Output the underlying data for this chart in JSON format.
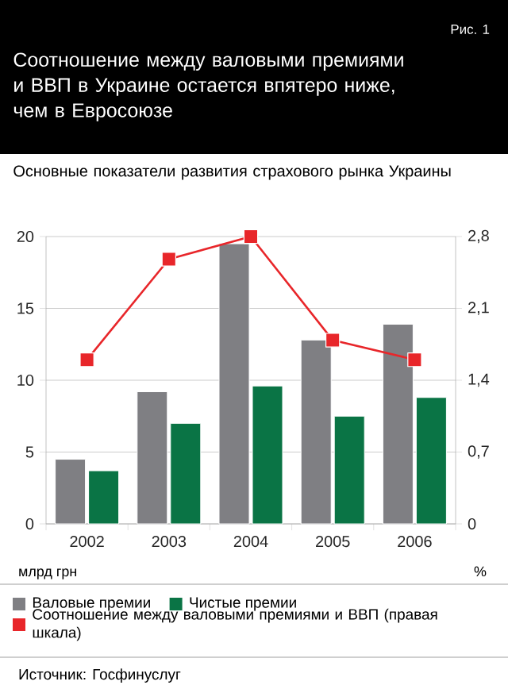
{
  "chart_data": {
    "type": "bar",
    "title": "Соотношение между валовыми премиями и ВВП в Украине остается впятеро ниже, чем в Евросоюзе",
    "subtitle": "Основные показатели развития страхового рынка Украины",
    "y2label": "%",
    "categories": [
      "2002",
      "2003",
      "2004",
      "2005",
      "2006"
    ],
    "series": [
      {
        "name": "Валовые премии",
        "color": "#7f7f83",
        "values": [
          4.5,
          9.2,
          19.5,
          12.8,
          13.9
        ]
      },
      {
        "name": "Чистые премии",
        "color": "#0a7445",
        "values": [
          3.7,
          7.0,
          9.6,
          7.5,
          8.8
        ]
      },
      {
        "name": "Соотношение между валовыми премиями и ВВП (правая шкала)",
        "color": "#e8262a",
        "type": "line",
        "axis": "y2",
        "marker": "square",
        "values": [
          1.6,
          2.58,
          2.8,
          1.79,
          1.6
        ]
      }
    ],
    "ylim": [
      0,
      20
    ],
    "yticks": [
      0,
      5,
      10,
      15,
      20
    ],
    "y2lim": [
      0,
      2.8
    ],
    "y2ticks": [
      {
        "value": 0,
        "label": "0"
      },
      {
        "value": 0.7,
        "label": "0,7"
      },
      {
        "value": 1.4,
        "label": "1,4"
      },
      {
        "value": 2.1,
        "label": "2,1"
      },
      {
        "value": 2.8,
        "label": "2,8"
      }
    ],
    "grid": "y",
    "legend": "bottom",
    "annotations": [
      "Рис. 1",
      "Источник: Госфинуслуг",
      "млрд грн"
    ]
  }
}
